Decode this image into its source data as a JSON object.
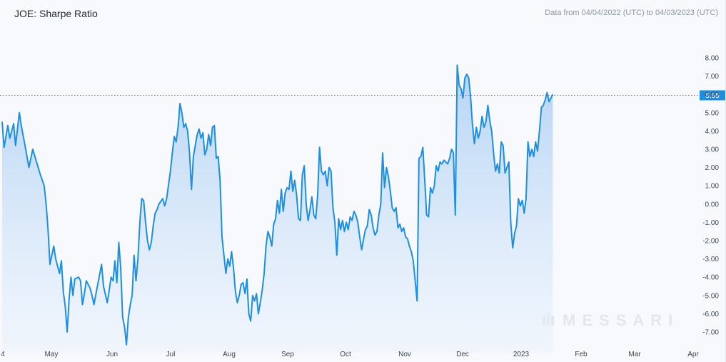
{
  "header": {
    "title": "JOE: Sharpe Ratio",
    "date_range": "Data from 04/04/2022 (UTC) to 04/03/2023 (UTC)"
  },
  "watermark": {
    "text": "MESSARI",
    "icon": "messari-logo-icon"
  },
  "colors": {
    "line": "#1e8fe0",
    "fill_top": "#a9cdf3",
    "fill_bottom": "#e9f2fd",
    "current_tag": "#1e8fe0"
  },
  "chart_data": {
    "type": "area",
    "title": "JOE: Sharpe Ratio",
    "xlabel": "",
    "ylabel": "",
    "ylim": [
      -7.6,
      8.6
    ],
    "grid": false,
    "y_ticks": [
      "8.00",
      "7.00",
      "6.00",
      "5.00",
      "4.00",
      "3.00",
      "2.00",
      "1.00",
      "0.00",
      "-1.00",
      "-2.00",
      "-3.00",
      "-4.00",
      "-5.00",
      "-6.00",
      "-7.00"
    ],
    "x_ticks": [
      "4",
      "May",
      "Jun",
      "Jul",
      "Aug",
      "Sep",
      "Oct",
      "Nov",
      "Dec",
      "2023",
      "Feb",
      "Mar",
      "Apr"
    ],
    "current_value": 5.95,
    "current_value_label": "5.95",
    "series": [
      {
        "points": [
          [
            "2022-04-04",
            4.5
          ],
          [
            "2022-04-05",
            3.1
          ],
          [
            "2022-04-07",
            4.3
          ],
          [
            "2022-04-08",
            3.6
          ],
          [
            "2022-04-10",
            4.4
          ],
          [
            "2022-04-11",
            3.2
          ],
          [
            "2022-04-13",
            5.0
          ],
          [
            "2022-04-14",
            4.3
          ],
          [
            "2022-04-16",
            3.2
          ],
          [
            "2022-04-18",
            2.0
          ],
          [
            "2022-04-20",
            3.0
          ],
          [
            "2022-04-22",
            2.3
          ],
          [
            "2022-04-24",
            1.6
          ],
          [
            "2022-04-26",
            1.0
          ],
          [
            "2022-04-27",
            0.0
          ],
          [
            "2022-04-28",
            -1.4
          ],
          [
            "2022-04-29",
            -3.3
          ],
          [
            "2022-04-30",
            -2.8
          ],
          [
            "2022-05-01",
            -2.3
          ],
          [
            "2022-05-02",
            -3.0
          ],
          [
            "2022-05-04",
            -3.8
          ],
          [
            "2022-05-05",
            -3.1
          ],
          [
            "2022-05-06",
            -4.8
          ],
          [
            "2022-05-07",
            -5.6
          ],
          [
            "2022-05-08",
            -7.0
          ],
          [
            "2022-05-09",
            -5.2
          ],
          [
            "2022-05-10",
            -4.0
          ],
          [
            "2022-05-11",
            -5.0
          ],
          [
            "2022-05-12",
            -4.1
          ],
          [
            "2022-05-14",
            -4.0
          ],
          [
            "2022-05-15",
            -4.2
          ],
          [
            "2022-05-16",
            -5.5
          ],
          [
            "2022-05-17",
            -4.9
          ],
          [
            "2022-05-18",
            -4.2
          ],
          [
            "2022-05-20",
            -4.6
          ],
          [
            "2022-05-21",
            -5.0
          ],
          [
            "2022-05-22",
            -5.5
          ],
          [
            "2022-05-24",
            -4.4
          ],
          [
            "2022-05-26",
            -3.3
          ],
          [
            "2022-05-27",
            -4.5
          ],
          [
            "2022-05-29",
            -5.4
          ],
          [
            "2022-05-31",
            -4.0
          ],
          [
            "2022-06-01",
            -4.2
          ],
          [
            "2022-06-02",
            -3.1
          ],
          [
            "2022-06-03",
            -4.3
          ],
          [
            "2022-06-04",
            -2.1
          ],
          [
            "2022-06-05",
            -3.5
          ],
          [
            "2022-06-06",
            -6.2
          ],
          [
            "2022-06-07",
            -6.7
          ],
          [
            "2022-06-08",
            -7.7
          ],
          [
            "2022-06-09",
            -6.2
          ],
          [
            "2022-06-10",
            -5.5
          ],
          [
            "2022-06-11",
            -5.0
          ],
          [
            "2022-06-12",
            -2.8
          ],
          [
            "2022-06-13",
            -4.2
          ],
          [
            "2022-06-14",
            -3.0
          ],
          [
            "2022-06-15",
            -1.0
          ],
          [
            "2022-06-16",
            0.3
          ],
          [
            "2022-06-17",
            0.2
          ],
          [
            "2022-06-18",
            -1.0
          ],
          [
            "2022-06-19",
            -2.0
          ],
          [
            "2022-06-20",
            -2.5
          ],
          [
            "2022-06-21",
            -2.1
          ],
          [
            "2022-06-22",
            -1.2
          ],
          [
            "2022-06-23",
            -0.5
          ],
          [
            "2022-06-24",
            -0.3
          ],
          [
            "2022-06-25",
            0.0
          ],
          [
            "2022-06-27",
            0.3
          ],
          [
            "2022-06-28",
            -0.1
          ],
          [
            "2022-06-29",
            0.3
          ],
          [
            "2022-07-01",
            1.8
          ],
          [
            "2022-07-02",
            2.8
          ],
          [
            "2022-07-03",
            3.7
          ],
          [
            "2022-07-04",
            3.4
          ],
          [
            "2022-07-05",
            4.2
          ],
          [
            "2022-07-06",
            5.5
          ],
          [
            "2022-07-07",
            5.0
          ],
          [
            "2022-07-08",
            4.2
          ],
          [
            "2022-07-09",
            4.4
          ],
          [
            "2022-07-10",
            4.0
          ],
          [
            "2022-07-11",
            2.8
          ],
          [
            "2022-07-12",
            0.8
          ],
          [
            "2022-07-13",
            2.6
          ],
          [
            "2022-07-14",
            3.2
          ],
          [
            "2022-07-15",
            3.8
          ],
          [
            "2022-07-16",
            4.1
          ],
          [
            "2022-07-17",
            3.6
          ],
          [
            "2022-07-18",
            3.9
          ],
          [
            "2022-07-19",
            2.7
          ],
          [
            "2022-07-20",
            3.0
          ],
          [
            "2022-07-21",
            3.8
          ],
          [
            "2022-07-22",
            3.2
          ],
          [
            "2022-07-23",
            4.2
          ],
          [
            "2022-07-24",
            4.3
          ],
          [
            "2022-07-25",
            2.5
          ],
          [
            "2022-07-26",
            2.6
          ],
          [
            "2022-07-27",
            1.2
          ],
          [
            "2022-07-28",
            -1.8
          ],
          [
            "2022-07-29",
            -2.8
          ],
          [
            "2022-07-30",
            -3.8
          ],
          [
            "2022-07-31",
            -3.0
          ],
          [
            "2022-08-01",
            -3.4
          ],
          [
            "2022-08-02",
            -2.6
          ],
          [
            "2022-08-03",
            -3.5
          ],
          [
            "2022-08-04",
            -4.8
          ],
          [
            "2022-08-05",
            -5.4
          ],
          [
            "2022-08-06",
            -5.0
          ],
          [
            "2022-08-07",
            -4.4
          ],
          [
            "2022-08-08",
            -4.3
          ],
          [
            "2022-08-09",
            -4.9
          ],
          [
            "2022-08-10",
            -4.1
          ],
          [
            "2022-08-11",
            -6.0
          ],
          [
            "2022-08-12",
            -6.4
          ],
          [
            "2022-08-13",
            -5.0
          ],
          [
            "2022-08-14",
            -5.3
          ],
          [
            "2022-08-15",
            -4.9
          ],
          [
            "2022-08-16",
            -6.0
          ],
          [
            "2022-08-17",
            -5.4
          ],
          [
            "2022-08-18",
            -4.7
          ],
          [
            "2022-08-19",
            -3.8
          ],
          [
            "2022-08-20",
            -2.3
          ],
          [
            "2022-08-21",
            -1.5
          ],
          [
            "2022-08-22",
            -1.8
          ],
          [
            "2022-08-23",
            -2.3
          ],
          [
            "2022-08-24",
            -1.1
          ],
          [
            "2022-08-25",
            -0.8
          ],
          [
            "2022-08-26",
            0.2
          ],
          [
            "2022-08-27",
            -0.5
          ],
          [
            "2022-08-28",
            0.8
          ],
          [
            "2022-08-29",
            -0.4
          ],
          [
            "2022-08-30",
            0.6
          ],
          [
            "2022-08-31",
            0.9
          ],
          [
            "2022-09-01",
            0.8
          ],
          [
            "2022-09-02",
            1.8
          ],
          [
            "2022-09-03",
            0.7
          ],
          [
            "2022-09-04",
            1.3
          ],
          [
            "2022-09-05",
            0.5
          ],
          [
            "2022-09-06",
            -0.8
          ],
          [
            "2022-09-07",
            -0.9
          ],
          [
            "2022-09-08",
            1.6
          ],
          [
            "2022-09-09",
            2.1
          ],
          [
            "2022-09-10",
            0.0
          ],
          [
            "2022-09-11",
            -0.9
          ],
          [
            "2022-09-12",
            -0.3
          ],
          [
            "2022-09-13",
            0.4
          ],
          [
            "2022-09-14",
            -0.6
          ],
          [
            "2022-09-15",
            -0.8
          ],
          [
            "2022-09-16",
            0.5
          ],
          [
            "2022-09-17",
            3.1
          ],
          [
            "2022-09-18",
            1.8
          ],
          [
            "2022-09-19",
            1.6
          ],
          [
            "2022-09-20",
            1.8
          ],
          [
            "2022-09-21",
            1.0
          ],
          [
            "2022-09-22",
            2.0
          ],
          [
            "2022-09-23",
            1.8
          ],
          [
            "2022-09-24",
            -0.2
          ],
          [
            "2022-09-25",
            -1.0
          ],
          [
            "2022-09-26",
            -2.8
          ],
          [
            "2022-09-27",
            -0.8
          ],
          [
            "2022-09-28",
            -1.4
          ],
          [
            "2022-09-29",
            -0.9
          ],
          [
            "2022-09-30",
            -1.5
          ],
          [
            "2022-10-01",
            -1.0
          ],
          [
            "2022-10-02",
            -1.4
          ],
          [
            "2022-10-03",
            -0.7
          ],
          [
            "2022-10-04",
            -0.9
          ],
          [
            "2022-10-05",
            -0.4
          ],
          [
            "2022-10-06",
            -0.6
          ],
          [
            "2022-10-07",
            -1.0
          ],
          [
            "2022-10-08",
            -1.8
          ],
          [
            "2022-10-09",
            -2.5
          ],
          [
            "2022-10-10",
            -1.9
          ],
          [
            "2022-10-11",
            -1.4
          ],
          [
            "2022-10-12",
            -1.2
          ],
          [
            "2022-10-13",
            -0.3
          ],
          [
            "2022-10-14",
            -0.6
          ],
          [
            "2022-10-15",
            -1.3
          ],
          [
            "2022-10-16",
            -1.7
          ],
          [
            "2022-10-17",
            -1.5
          ],
          [
            "2022-10-18",
            -0.6
          ],
          [
            "2022-10-19",
            0.0
          ],
          [
            "2022-10-20",
            2.8
          ],
          [
            "2022-10-21",
            0.9
          ],
          [
            "2022-10-22",
            2.0
          ],
          [
            "2022-10-23",
            1.5
          ],
          [
            "2022-10-24",
            0.7
          ],
          [
            "2022-10-25",
            -0.2
          ],
          [
            "2022-10-26",
            -0.4
          ],
          [
            "2022-10-27",
            -0.2
          ],
          [
            "2022-10-28",
            -1.3
          ],
          [
            "2022-10-29",
            -1.1
          ],
          [
            "2022-10-30",
            -1.5
          ],
          [
            "2022-10-31",
            -1.3
          ],
          [
            "2022-11-01",
            -1.8
          ],
          [
            "2022-11-02",
            -1.9
          ],
          [
            "2022-11-03",
            -2.3
          ],
          [
            "2022-11-04",
            -2.6
          ],
          [
            "2022-11-05",
            -3.1
          ],
          [
            "2022-11-06",
            -4.2
          ],
          [
            "2022-11-07",
            -5.3
          ],
          [
            "2022-11-08",
            2.5
          ],
          [
            "2022-11-09",
            2.6
          ],
          [
            "2022-11-10",
            3.1
          ],
          [
            "2022-11-11",
            1.3
          ],
          [
            "2022-11-12",
            -0.6
          ],
          [
            "2022-11-13",
            -0.7
          ],
          [
            "2022-11-14",
            0.9
          ],
          [
            "2022-11-15",
            0.6
          ],
          [
            "2022-11-16",
            1.0
          ],
          [
            "2022-11-17",
            2.1
          ],
          [
            "2022-11-18",
            1.8
          ],
          [
            "2022-11-19",
            2.3
          ],
          [
            "2022-11-20",
            2.2
          ],
          [
            "2022-11-21",
            2.4
          ],
          [
            "2022-11-22",
            2.3
          ],
          [
            "2022-11-23",
            2.2
          ],
          [
            "2022-11-24",
            2.5
          ],
          [
            "2022-11-25",
            3.0
          ],
          [
            "2022-11-26",
            2.8
          ],
          [
            "2022-11-27",
            -0.6
          ],
          [
            "2022-11-28",
            7.6
          ],
          [
            "2022-11-29",
            6.5
          ],
          [
            "2022-11-30",
            6.3
          ],
          [
            "2022-12-01",
            5.8
          ],
          [
            "2022-12-02",
            6.9
          ],
          [
            "2022-12-03",
            7.1
          ],
          [
            "2022-12-04",
            6.9
          ],
          [
            "2022-12-05",
            5.8
          ],
          [
            "2022-12-06",
            4.3
          ],
          [
            "2022-12-07",
            3.3
          ],
          [
            "2022-12-08",
            4.2
          ],
          [
            "2022-12-09",
            3.6
          ],
          [
            "2022-12-10",
            4.0
          ],
          [
            "2022-12-11",
            4.8
          ],
          [
            "2022-12-12",
            4.2
          ],
          [
            "2022-12-13",
            4.5
          ],
          [
            "2022-12-14",
            5.4
          ],
          [
            "2022-12-15",
            4.6
          ],
          [
            "2022-12-16",
            4.0
          ],
          [
            "2022-12-17",
            2.8
          ],
          [
            "2022-12-18",
            1.8
          ],
          [
            "2022-12-19",
            2.2
          ],
          [
            "2022-12-20",
            1.7
          ],
          [
            "2022-12-21",
            3.4
          ],
          [
            "2022-12-22",
            3.2
          ],
          [
            "2022-12-23",
            1.7
          ],
          [
            "2022-12-24",
            2.0
          ],
          [
            "2022-12-25",
            2.3
          ],
          [
            "2022-12-26",
            -1.0
          ],
          [
            "2022-12-27",
            -2.4
          ],
          [
            "2022-12-28",
            -1.6
          ],
          [
            "2022-12-29",
            -1.2
          ],
          [
            "2022-12-30",
            0.3
          ],
          [
            "2022-12-31",
            -0.1
          ],
          [
            "2023-01-01",
            0.2
          ],
          [
            "2023-01-02",
            -0.5
          ],
          [
            "2023-01-03",
            0.3
          ],
          [
            "2023-01-04",
            3.4
          ],
          [
            "2023-01-05",
            2.6
          ],
          [
            "2023-01-06",
            3.0
          ],
          [
            "2023-01-07",
            2.6
          ],
          [
            "2023-01-08",
            3.4
          ],
          [
            "2023-01-09",
            2.9
          ],
          [
            "2023-01-10",
            4.0
          ],
          [
            "2023-01-11",
            5.3
          ],
          [
            "2023-01-12",
            5.4
          ],
          [
            "2023-01-13",
            5.7
          ],
          [
            "2023-01-14",
            6.1
          ],
          [
            "2023-01-15",
            5.6
          ],
          [
            "2023-01-16",
            5.8
          ],
          [
            "2023-01-17",
            6.0
          ]
        ]
      }
    ]
  }
}
